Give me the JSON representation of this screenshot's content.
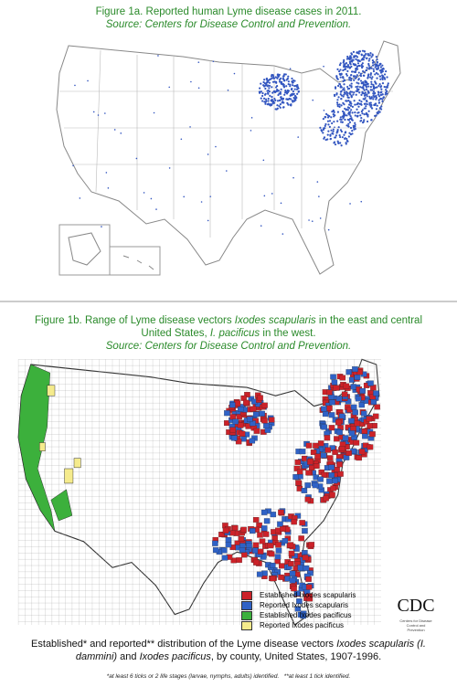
{
  "figure_1a": {
    "title": "Figure 1a. Reported human Lyme disease cases in 2011.",
    "source": "Source: Centers for Disease Control and Prevention."
  },
  "figure_1b": {
    "title": [
      "Figure 1b. Range of Lyme disease vectors ",
      "Ixodes scapularis",
      " in the east and central United States, ",
      "I. pacificus",
      " in the west."
    ],
    "source": "Source: Centers for Disease Control and Prevention.",
    "legend": [
      {
        "label": "Established Ixodes scapularis",
        "color": "#cc2229"
      },
      {
        "label": "Reported Ixodes scapularis",
        "color": "#2f62c6"
      },
      {
        "label": "Established Ixodes pacificus",
        "color": "#3cb03c"
      },
      {
        "label": "Reported Ixodes pacificus",
        "color": "#f5eb8c"
      }
    ],
    "logo": {
      "name": "CDC",
      "subtitle": "Centers for Disease Control and Prevention"
    }
  },
  "caption": {
    "text": [
      "Established* and reported** distribution of the Lyme disease vectors ",
      "Ixodes scapularis (I. dammini)",
      " and ",
      "Ixodes pacificus",
      ", by county, United States, 1907-1996."
    ],
    "footnote": "*at least 6 ticks or 2 life stages (larvae, nymphs, adults) identified.   **at least 1 tick identified."
  }
}
